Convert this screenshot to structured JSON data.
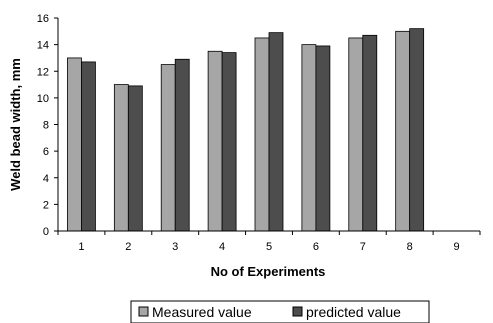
{
  "chart_data": {
    "type": "bar",
    "categories": [
      "1",
      "2",
      "3",
      "4",
      "5",
      "6",
      "7",
      "8",
      "9"
    ],
    "series": [
      {
        "name": "Measured value",
        "values": [
          13.0,
          11.0,
          12.5,
          13.5,
          14.5,
          14.0,
          14.5,
          15.0,
          null
        ],
        "color": "#a6a6a6"
      },
      {
        "name": "predicted value",
        "values": [
          12.7,
          10.9,
          12.9,
          13.4,
          14.9,
          13.9,
          14.7,
          15.2,
          null
        ],
        "color": "#4d4d4d"
      }
    ],
    "xlabel": "No of Experiments",
    "ylabel": "Weld bead width, mm",
    "ylim": [
      0,
      16
    ],
    "yticks": [
      0,
      2,
      4,
      6,
      8,
      10,
      12,
      14,
      16
    ],
    "grid": false,
    "legend": "bottom"
  }
}
